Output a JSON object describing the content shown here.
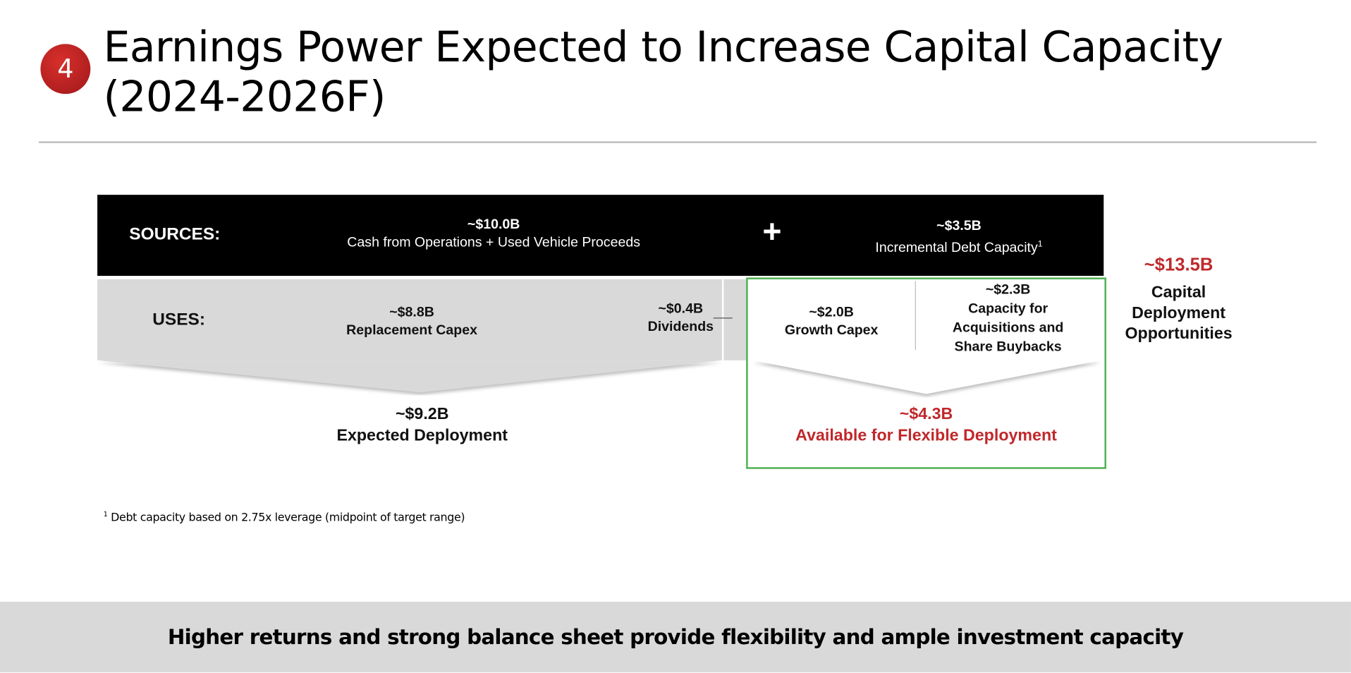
{
  "slide": {
    "badge_number": "4",
    "title_line1": "Earnings Power Expected to Increase Capital Capacity",
    "title_line2": "(2024-2026F)"
  },
  "sources": {
    "label": "SOURCES:",
    "cash": {
      "amount": "~$10.0B",
      "desc": "Cash from Operations + Used Vehicle Proceeds"
    },
    "plus": "+",
    "debt": {
      "amount": "~$3.5B",
      "desc": "Incremental Debt Capacity",
      "footnote_mark": "1"
    }
  },
  "uses": {
    "label": "USES:",
    "replacement": {
      "amount": "~$8.8B",
      "desc": "Replacement Capex"
    },
    "dividends": {
      "amount": "~$0.4B",
      "desc": "Dividends"
    },
    "growth": {
      "amount": "~$2.0B",
      "desc": "Growth Capex"
    },
    "acquisitions": {
      "amount": "~$2.3B",
      "desc_line1": "Capacity for",
      "desc_line2": "Acquisitions and",
      "desc_line3": "Share Buybacks"
    }
  },
  "totals": {
    "expected": {
      "amount": "~$9.2B",
      "desc": "Expected Deployment"
    },
    "flexible": {
      "amount": "~$4.3B",
      "desc": "Available for Flexible Deployment"
    },
    "capital": {
      "amount": "~$13.5B",
      "line1": "Capital",
      "line2": "Deployment",
      "line3": "Opportunities"
    }
  },
  "footnote": {
    "mark": "1",
    "text": "Debt capacity based on 2.75x leverage (midpoint of target range)"
  },
  "banner": "Higher returns and strong balance sheet provide flexibility and ample investment capacity",
  "colors": {
    "accent_red": "#c0282b",
    "green_border": "#4caf50",
    "gray_fill": "#d9d9d9"
  }
}
